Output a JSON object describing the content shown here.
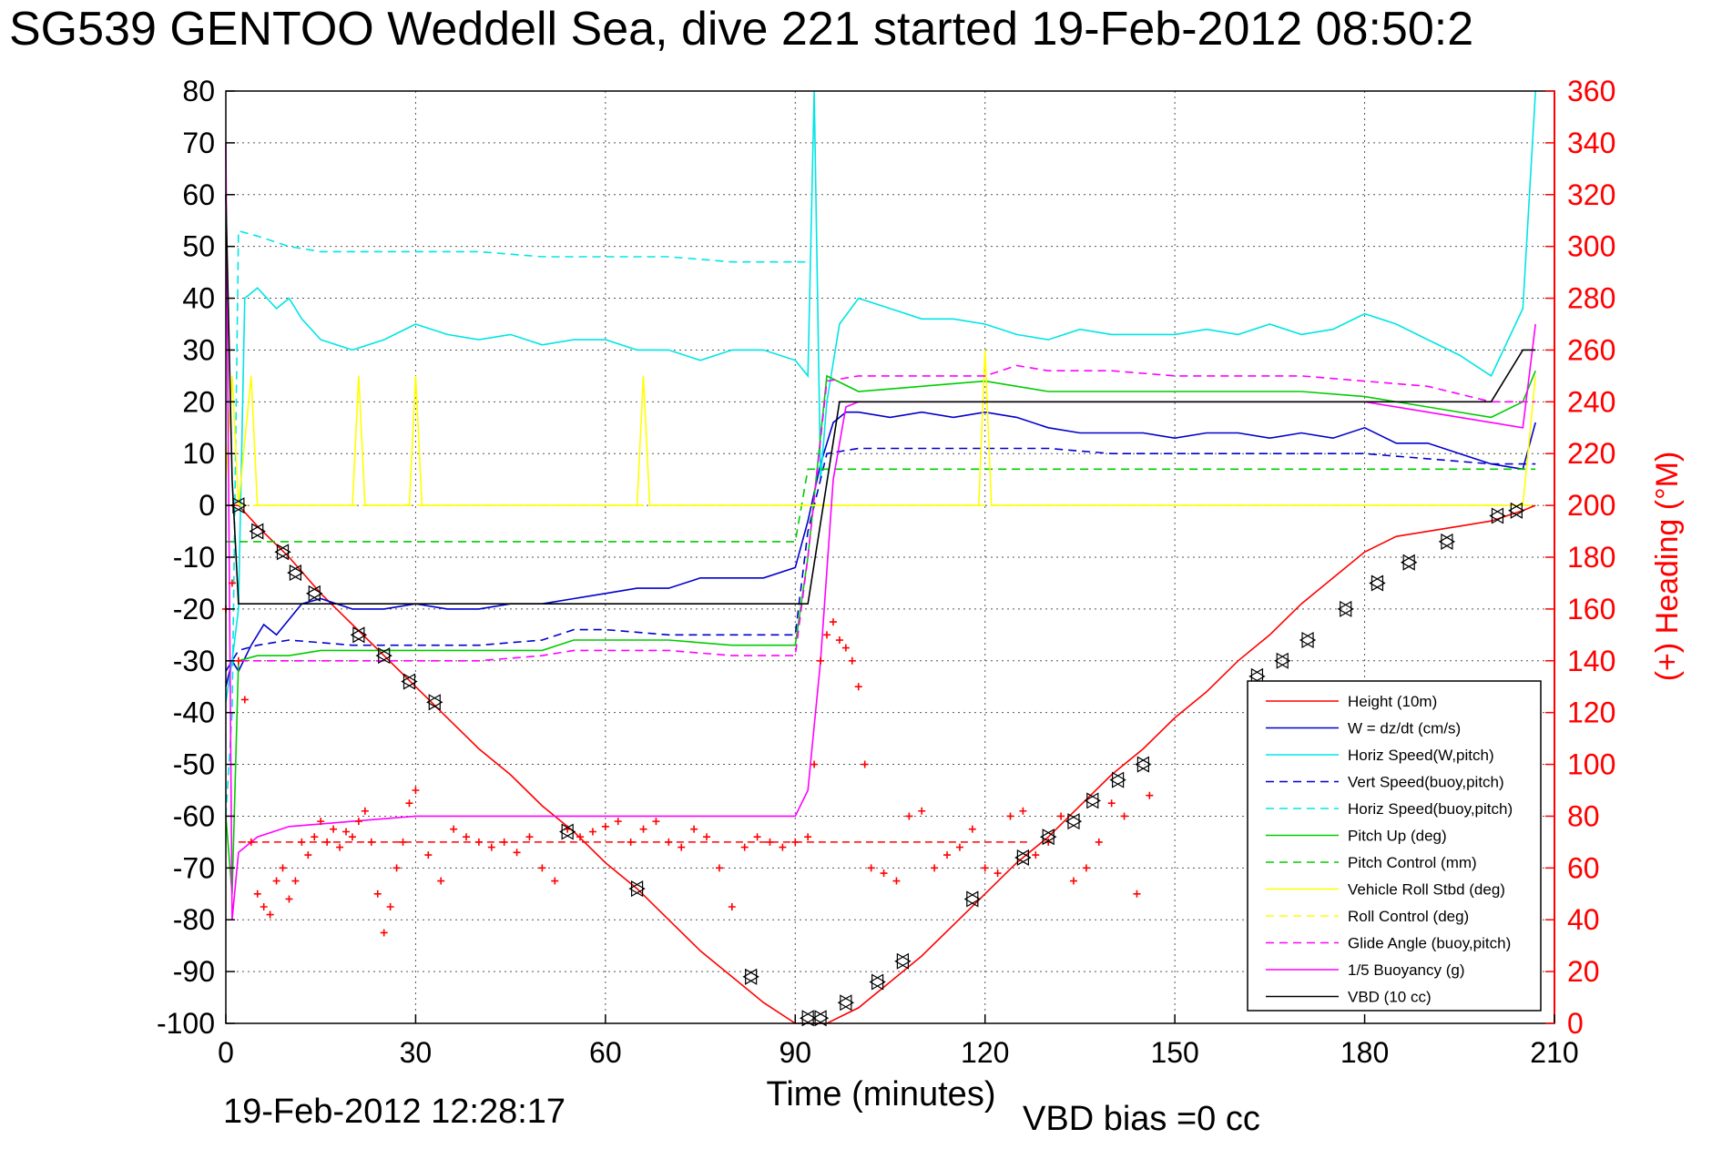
{
  "title": "SG539 GENTOO Weddell Sea, dive 221 started 19-Feb-2012 08:50:2",
  "footer": {
    "timestamp": "19-Feb-2012 12:28:17",
    "vbd_bias": "VBD bias =0 cc"
  },
  "chart_data": {
    "type": "line",
    "xlabel": "Time (minutes)",
    "ylabel": "",
    "y2label": "(+) Heading (°M)",
    "xlim": [
      0,
      210
    ],
    "ylim": [
      -100,
      80
    ],
    "y2lim": [
      0,
      360
    ],
    "xticks": [
      0,
      30,
      60,
      90,
      120,
      150,
      180,
      210
    ],
    "yticks": [
      80,
      70,
      60,
      50,
      40,
      30,
      20,
      10,
      0,
      -10,
      -20,
      -30,
      -40,
      -50,
      -60,
      -70,
      -80,
      -90,
      -100
    ],
    "y2ticks": [
      360,
      340,
      320,
      300,
      280,
      260,
      240,
      220,
      200,
      180,
      160,
      140,
      120,
      100,
      80,
      60,
      40,
      20,
      0
    ],
    "grid": true,
    "legend_position": "lower-right",
    "colors": {
      "red": "#ff0000",
      "blue": "#0000cc",
      "cyan": "#00e5e5",
      "green": "#00cc00",
      "yellow": "#ffff00",
      "magenta": "#ff00ff",
      "black": "#000000"
    },
    "series": [
      {
        "name": "Height (10m)",
        "color": "#ff0000",
        "style": "solid",
        "x": [
          0,
          2,
          5,
          10,
          15,
          20,
          25,
          30,
          35,
          40,
          45,
          50,
          55,
          60,
          65,
          70,
          75,
          80,
          85,
          90,
          92,
          95,
          100,
          105,
          110,
          115,
          120,
          125,
          130,
          135,
          140,
          145,
          150,
          155,
          160,
          165,
          170,
          175,
          180,
          185,
          190,
          195,
          200,
          205,
          207
        ],
        "y": [
          0,
          0,
          -4,
          -10,
          -17,
          -23,
          -29,
          -35,
          -41,
          -47,
          -52,
          -58,
          -63,
          -69,
          -74,
          -80,
          -86,
          -91,
          -96,
          -100,
          -100,
          -100,
          -97,
          -92,
          -87,
          -81,
          -75,
          -69,
          -64,
          -58,
          -52,
          -47,
          -41,
          -36,
          -30,
          -25,
          -19,
          -14,
          -9,
          -6,
          -5,
          -4,
          -3,
          -1,
          0
        ]
      },
      {
        "name": "W = dz/dt (cm/s)",
        "color": "#0000cc",
        "style": "solid",
        "x": [
          0,
          1,
          2,
          4,
          6,
          8,
          10,
          12,
          15,
          20,
          25,
          30,
          35,
          40,
          45,
          50,
          55,
          60,
          65,
          70,
          75,
          80,
          85,
          90,
          92,
          94,
          96,
          98,
          100,
          105,
          110,
          115,
          120,
          125,
          130,
          135,
          140,
          145,
          150,
          155,
          160,
          165,
          170,
          175,
          180,
          185,
          190,
          195,
          200,
          205,
          207
        ],
        "y": [
          -35,
          -30,
          -32,
          -27,
          -23,
          -25,
          -22,
          -19,
          -18,
          -20,
          -20,
          -19,
          -20,
          -20,
          -19,
          -19,
          -18,
          -17,
          -16,
          -16,
          -14,
          -14,
          -14,
          -12,
          -3,
          8,
          16,
          18,
          18,
          17,
          18,
          17,
          18,
          17,
          15,
          14,
          14,
          14,
          13,
          14,
          14,
          13,
          14,
          13,
          15,
          12,
          12,
          10,
          8,
          7,
          16
        ]
      },
      {
        "name": "Horiz Speed(W,pitch)",
        "color": "#00e5e5",
        "style": "solid",
        "x": [
          0,
          1,
          2,
          3,
          5,
          8,
          10,
          12,
          15,
          20,
          25,
          30,
          35,
          40,
          45,
          50,
          55,
          60,
          65,
          70,
          75,
          80,
          85,
          90,
          92,
          93,
          94,
          95,
          97,
          100,
          105,
          110,
          115,
          120,
          125,
          130,
          135,
          140,
          145,
          150,
          155,
          160,
          165,
          170,
          175,
          180,
          185,
          190,
          195,
          200,
          205,
          207
        ],
        "y": [
          -38,
          -30,
          -20,
          40,
          42,
          38,
          40,
          36,
          32,
          30,
          32,
          35,
          33,
          32,
          33,
          31,
          32,
          32,
          30,
          30,
          28,
          30,
          30,
          28,
          25,
          80,
          5,
          20,
          35,
          40,
          38,
          36,
          36,
          35,
          33,
          32,
          34,
          33,
          33,
          33,
          34,
          33,
          35,
          33,
          34,
          37,
          35,
          32,
          29,
          25,
          38,
          80
        ]
      },
      {
        "name": "Vert Speed(buoy,pitch)",
        "color": "#0000cc",
        "style": "dashed",
        "x": [
          0,
          2,
          5,
          10,
          20,
          30,
          40,
          50,
          55,
          60,
          70,
          80,
          90,
          92,
          95,
          100,
          110,
          120,
          130,
          140,
          150,
          160,
          170,
          180,
          190,
          200,
          207
        ],
        "y": [
          -32,
          -28,
          -27,
          -26,
          -27,
          -27,
          -27,
          -26,
          -24,
          -24,
          -25,
          -25,
          -25,
          -5,
          10,
          11,
          11,
          11,
          11,
          10,
          10,
          10,
          10,
          10,
          9,
          8,
          8
        ]
      },
      {
        "name": "Horiz Speed(buoy,pitch)",
        "color": "#00e5e5",
        "style": "dashed",
        "x": [
          0,
          1,
          2,
          5,
          10,
          15,
          20,
          30,
          40,
          50,
          55,
          60,
          70,
          80,
          85,
          90,
          92
        ],
        "y": [
          -60,
          -40,
          53,
          52,
          50,
          49,
          49,
          49,
          49,
          48,
          48,
          48,
          48,
          47,
          47,
          47,
          47
        ]
      },
      {
        "name": "Pitch Up (deg)",
        "color": "#00cc00",
        "style": "solid",
        "x": [
          0,
          1,
          2,
          5,
          10,
          15,
          20,
          30,
          40,
          50,
          55,
          60,
          70,
          80,
          90,
          92,
          95,
          100,
          110,
          120,
          130,
          140,
          150,
          160,
          170,
          180,
          190,
          200,
          205,
          207
        ],
        "y": [
          -60,
          -75,
          -30,
          -29,
          -29,
          -28,
          -28,
          -28,
          -28,
          -28,
          -26,
          -26,
          -26,
          -27,
          -27,
          -10,
          25,
          22,
          23,
          24,
          22,
          22,
          22,
          22,
          22,
          21,
          19,
          17,
          20,
          26
        ]
      },
      {
        "name": "Pitch Control (mm)",
        "color": "#00cc00",
        "style": "dashed",
        "x": [
          0,
          2,
          10,
          30,
          60,
          90,
          92,
          97,
          120,
          150,
          180,
          207
        ],
        "y": [
          -7,
          -7,
          -7,
          -7,
          -7,
          -7,
          7,
          7,
          7,
          7,
          7,
          7
        ]
      },
      {
        "name": "Vehicle Roll Stbd (deg)",
        "color": "#ffff00",
        "style": "solid",
        "x": [
          0,
          1,
          2,
          4,
          5,
          7,
          10,
          15,
          20,
          21,
          22,
          25,
          29,
          30,
          31,
          35,
          50,
          55,
          60,
          65,
          66,
          67,
          70,
          80,
          85,
          90,
          92,
          95,
          97,
          100,
          110,
          119,
          120,
          121,
          130,
          150,
          180,
          200,
          205,
          207
        ],
        "y": [
          5,
          25,
          0,
          25,
          0,
          0,
          0,
          0,
          0,
          25,
          0,
          0,
          0,
          25,
          0,
          0,
          0,
          0,
          0,
          0,
          25,
          0,
          0,
          0,
          0,
          0,
          0,
          0,
          0,
          0,
          0,
          0,
          30,
          0,
          0,
          0,
          0,
          0,
          0,
          25
        ]
      },
      {
        "name": "Roll Control (deg)",
        "color": "#ffff00",
        "style": "dashed",
        "x": [
          0,
          2,
          10,
          50,
          90,
          92,
          100,
          150,
          200,
          207
        ],
        "y": [
          0,
          0,
          0,
          0,
          0,
          0,
          0,
          0,
          0,
          0
        ]
      },
      {
        "name": "Glide Angle (buoy,pitch)",
        "color": "#ff00ff",
        "style": "dashed",
        "x": [
          0,
          2,
          5,
          10,
          20,
          30,
          40,
          50,
          55,
          60,
          70,
          80,
          90,
          92,
          95,
          100,
          110,
          120,
          125,
          130,
          140,
          150,
          160,
          170,
          180,
          190,
          200,
          207
        ],
        "y": [
          -30,
          -30,
          -30,
          -30,
          -30,
          -30,
          -30,
          -29,
          -28,
          -28,
          -28,
          -29,
          -29,
          -10,
          24,
          25,
          25,
          25,
          27,
          26,
          26,
          25,
          25,
          25,
          24,
          23,
          20,
          20
        ]
      },
      {
        "name": "1/5 Buoyancy (g)",
        "color": "#ff00ff",
        "style": "solid",
        "x": [
          0,
          1,
          2,
          3,
          5,
          10,
          20,
          30,
          40,
          50,
          60,
          70,
          80,
          90,
          92,
          94,
          96,
          98,
          100,
          120,
          140,
          160,
          180,
          190,
          200,
          205,
          207
        ],
        "y": [
          70,
          -80,
          -67,
          -66,
          -64,
          -62,
          -61,
          -60,
          -60,
          -60,
          -60,
          -60,
          -60,
          -60,
          -55,
          -30,
          5,
          19,
          20,
          20,
          20,
          20,
          20,
          18,
          16,
          15,
          35
        ]
      },
      {
        "name": "VBD (10 cc)",
        "color": "#000000",
        "style": "solid",
        "x": [
          0,
          1,
          2,
          5,
          10,
          50,
          90,
          92,
          97,
          100,
          150,
          200,
          205,
          207
        ],
        "y": [
          60,
          5,
          -19,
          -19,
          -19,
          -19,
          -19,
          -19,
          20,
          20,
          20,
          20,
          30,
          30
        ]
      }
    ],
    "heading_y2": {
      "name": "Heading",
      "color": "#ff0000",
      "marker": "+",
      "x": [
        0,
        1,
        2,
        3,
        4,
        5,
        6,
        7,
        8,
        9,
        10,
        11,
        12,
        13,
        14,
        15,
        16,
        17,
        18,
        19,
        20,
        21,
        22,
        23,
        24,
        25,
        26,
        27,
        28,
        29,
        30,
        32,
        34,
        36,
        38,
        40,
        42,
        44,
        46,
        48,
        50,
        52,
        54,
        56,
        58,
        60,
        62,
        64,
        66,
        68,
        70,
        72,
        74,
        76,
        78,
        80,
        82,
        84,
        86,
        88,
        90,
        92,
        93,
        94,
        95,
        96,
        97,
        98,
        99,
        100,
        101,
        102,
        104,
        106,
        108,
        110,
        112,
        114,
        116,
        118,
        120,
        122,
        124,
        126,
        128,
        130,
        132,
        134,
        136,
        138,
        140,
        142,
        144,
        146
      ],
      "y": [
        160,
        170,
        140,
        125,
        70,
        50,
        45,
        42,
        55,
        60,
        48,
        55,
        70,
        65,
        72,
        78,
        70,
        75,
        68,
        74,
        72,
        78,
        82,
        70,
        50,
        35,
        45,
        60,
        70,
        85,
        90,
        65,
        55,
        75,
        72,
        70,
        68,
        70,
        66,
        72,
        60,
        55,
        75,
        72,
        74,
        76,
        78,
        70,
        75,
        78,
        70,
        68,
        75,
        72,
        60,
        45,
        68,
        72,
        70,
        68,
        70,
        72,
        100,
        140,
        150,
        155,
        148,
        145,
        140,
        130,
        100,
        60,
        58,
        55,
        80,
        82,
        60,
        65,
        68,
        75,
        60,
        58,
        80,
        82,
        65,
        70,
        80,
        55,
        60,
        70,
        85,
        80,
        50,
        88
      ]
    },
    "heading_ref": {
      "y2": 70,
      "xrange": [
        2,
        127
      ],
      "style": "dashed",
      "color": "#ff0000"
    },
    "vbd_markers": [
      {
        "x": 2,
        "y": 0
      },
      {
        "x": 5,
        "y": -5
      },
      {
        "x": 9,
        "y": -9
      },
      {
        "x": 11,
        "y": -13
      },
      {
        "x": 14,
        "y": -17
      },
      {
        "x": 21,
        "y": -25
      },
      {
        "x": 25,
        "y": -29
      },
      {
        "x": 29,
        "y": -34
      },
      {
        "x": 33,
        "y": -38
      },
      {
        "x": 54,
        "y": -63
      },
      {
        "x": 65,
        "y": -74
      },
      {
        "x": 83,
        "y": -91
      },
      {
        "x": 92,
        "y": -99
      },
      {
        "x": 94,
        "y": -99
      },
      {
        "x": 98,
        "y": -96
      },
      {
        "x": 103,
        "y": -92
      },
      {
        "x": 107,
        "y": -88
      },
      {
        "x": 118,
        "y": -76
      },
      {
        "x": 126,
        "y": -68
      },
      {
        "x": 130,
        "y": -64
      },
      {
        "x": 134,
        "y": -61
      },
      {
        "x": 137,
        "y": -57
      },
      {
        "x": 141,
        "y": -53
      },
      {
        "x": 145,
        "y": -50
      },
      {
        "x": 163,
        "y": -33
      },
      {
        "x": 167,
        "y": -30
      },
      {
        "x": 171,
        "y": -26
      },
      {
        "x": 177,
        "y": -20
      },
      {
        "x": 182,
        "y": -15
      },
      {
        "x": 187,
        "y": -11
      },
      {
        "x": 193,
        "y": -7
      },
      {
        "x": 201,
        "y": -2
      },
      {
        "x": 204,
        "y": -1
      }
    ]
  }
}
